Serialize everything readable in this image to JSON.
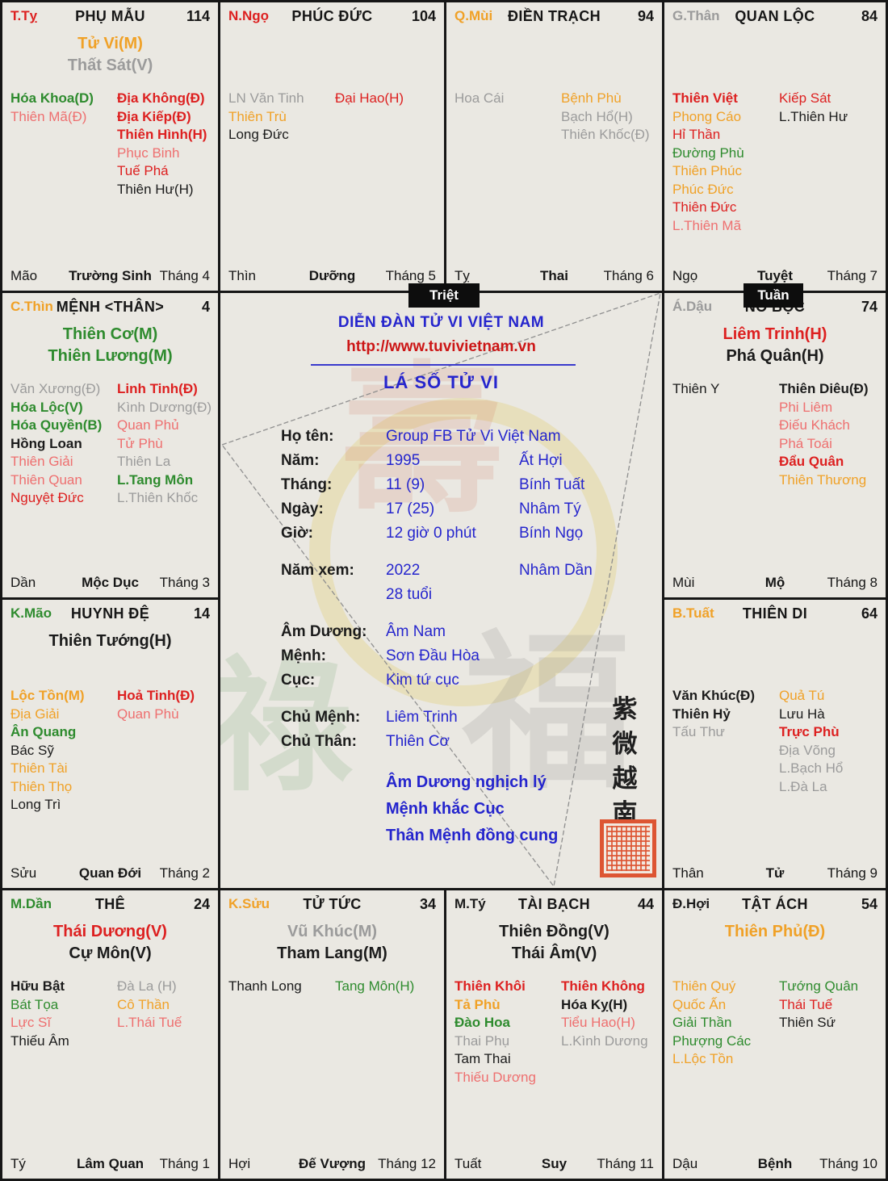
{
  "colors": {
    "red": "#dd2020",
    "pink": "#ee6f6f",
    "orange": "#f0a127",
    "green": "#2e8b2e",
    "gray": "#9b9b9b",
    "black": "#1b1b1b",
    "blue": "#2525cd",
    "url_red": "#cc1616",
    "cell_bg": "#eae8e2",
    "border": "#161616",
    "badge_bg": "#0d0d0d",
    "seal_red": "#dd5533"
  },
  "badges": {
    "triet": "Triệt",
    "tuan": "Tuần"
  },
  "center": {
    "forum_title": "DIỄN ĐÀN TỬ VI VIỆT NAM",
    "url": "http://www.tuvivietnam.vn",
    "chart_title": "LÁ SỐ TỬ VI",
    "fields": [
      {
        "label": "Họ tên:",
        "value": "Group FB Tử Vi Việt Nam",
        "extra": ""
      },
      {
        "label": "Năm:",
        "value": "1995",
        "extra": "Ất Hợi"
      },
      {
        "label": "Tháng:",
        "value": "11 (9)",
        "extra": "Bính Tuất"
      },
      {
        "label": "Ngày:",
        "value": "17 (25)",
        "extra": "Nhâm Tý"
      },
      {
        "label": "Giờ:",
        "value": "12 giờ 0 phút",
        "extra": "Bính Ngọ"
      },
      {
        "label": "Năm xem:",
        "value": "2022",
        "extra": "Nhâm Dần",
        "gap": true
      },
      {
        "label": "",
        "value": "28 tuổi",
        "extra": ""
      },
      {
        "label": "Âm Dương:",
        "value": "Âm Nam",
        "extra": "",
        "gap": true
      },
      {
        "label": "Mệnh:",
        "value": "Sơn Đầu Hòa",
        "extra": ""
      },
      {
        "label": "Cục:",
        "value": "Kim tứ cục",
        "extra": ""
      },
      {
        "label": "Chủ Mệnh:",
        "value": "Liêm Trinh",
        "extra": "",
        "gap": true
      },
      {
        "label": "Chủ Thân:",
        "value": "Thiên Cơ",
        "extra": ""
      }
    ],
    "notes": [
      "Âm Dương nghịch lý",
      "Mệnh khắc Cục",
      "Thân Mệnh đồng cung"
    ],
    "vertical_text": "紫微越南"
  },
  "palaces": [
    {
      "key": "phu-mau",
      "col": 0,
      "row": 0,
      "branch": "T.Tỵ",
      "branch_color": "red",
      "title": "PHỤ MẪU",
      "num": "114",
      "main": [
        {
          "t": "Tử Vi(M)",
          "c": "orange"
        },
        {
          "t": "Thất Sát(V)",
          "c": "gray"
        }
      ],
      "left": [
        {
          "t": "Hóa Khoa(D)",
          "c": "green",
          "b": 1
        },
        {
          "t": "Thiên Mã(Đ)",
          "c": "pink"
        }
      ],
      "right": [
        {
          "t": "Địa Không(Đ)",
          "c": "red",
          "b": 1
        },
        {
          "t": "Địa Kiếp(Đ)",
          "c": "red",
          "b": 1
        },
        {
          "t": "Thiên Hình(H)",
          "c": "red",
          "b": 1
        },
        {
          "t": "Phục Binh",
          "c": "pink"
        },
        {
          "t": "Tuế Phá",
          "c": "red"
        },
        {
          "t": "Thiên Hư(H)",
          "c": "black"
        }
      ],
      "footer": {
        "branch": "Mão",
        "stage": "Trường Sinh",
        "month": "Tháng 4"
      }
    },
    {
      "key": "phuc-duc",
      "col": 1,
      "row": 0,
      "branch": "N.Ngọ",
      "branch_color": "red",
      "title": "PHÚC ĐỨC",
      "num": "104",
      "main": [],
      "left": [
        {
          "t": "LN Văn Tinh",
          "c": "gray"
        },
        {
          "t": "Thiên Trù",
          "c": "orange"
        },
        {
          "t": "Long Đức",
          "c": "black"
        }
      ],
      "right": [
        {
          "t": "Đại Hao(H)",
          "c": "red"
        }
      ],
      "footer": {
        "branch": "Thìn",
        "stage": "Dưỡng",
        "month": "Tháng 5"
      }
    },
    {
      "key": "dien-trach",
      "col": 2,
      "row": 0,
      "branch": "Q.Mùi",
      "branch_color": "orange",
      "title": "ĐIỀN TRẠCH",
      "num": "94",
      "main": [],
      "left": [
        {
          "t": "Hoa Cái",
          "c": "gray"
        }
      ],
      "right": [
        {
          "t": "Bệnh Phù",
          "c": "orange"
        },
        {
          "t": "Bạch Hổ(H)",
          "c": "gray"
        },
        {
          "t": "Thiên Khốc(Đ)",
          "c": "gray"
        }
      ],
      "footer": {
        "branch": "Tỵ",
        "stage": "Thai",
        "month": "Tháng 6"
      }
    },
    {
      "key": "quan-loc",
      "col": 3,
      "row": 0,
      "branch": "G.Thân",
      "branch_color": "gray",
      "title": "QUAN LỘC",
      "num": "84",
      "main": [],
      "left": [
        {
          "t": "Thiên Việt",
          "c": "red",
          "b": 1
        },
        {
          "t": "Phong Cáo",
          "c": "orange"
        },
        {
          "t": "Hỉ Thần",
          "c": "red"
        },
        {
          "t": "Đường Phù",
          "c": "green"
        },
        {
          "t": "Thiên Phúc",
          "c": "orange"
        },
        {
          "t": "Phúc Đức",
          "c": "orange"
        },
        {
          "t": "Thiên Đức",
          "c": "red"
        },
        {
          "t": "L.Thiên Mã",
          "c": "pink"
        }
      ],
      "right": [
        {
          "t": "Kiếp Sát",
          "c": "red"
        },
        {
          "t": "L.Thiên Hư",
          "c": "black"
        }
      ],
      "footer": {
        "branch": "Ngọ",
        "stage": "Tuyệt",
        "month": "Tháng 7"
      }
    },
    {
      "key": "menh",
      "col": 0,
      "row": 1,
      "branch": "C.Thìn",
      "branch_color": "orange",
      "title": "MỆNH <THÂN>",
      "num": "4",
      "main": [
        {
          "t": "Thiên Cơ(M)",
          "c": "green"
        },
        {
          "t": "Thiên Lương(M)",
          "c": "green"
        }
      ],
      "left": [
        {
          "t": "Văn Xương(Đ)",
          "c": "gray"
        },
        {
          "t": "Hóa Lộc(V)",
          "c": "green",
          "b": 1
        },
        {
          "t": "Hóa Quyền(B)",
          "c": "green",
          "b": 1
        },
        {
          "t": "Hồng Loan",
          "c": "black",
          "b": 1
        },
        {
          "t": "Thiên Giải",
          "c": "pink"
        },
        {
          "t": "Thiên Quan",
          "c": "pink"
        },
        {
          "t": "Nguyệt Đức",
          "c": "red"
        }
      ],
      "right": [
        {
          "t": "Linh Tinh(Đ)",
          "c": "red",
          "b": 1
        },
        {
          "t": "Kình Dương(Đ)",
          "c": "gray"
        },
        {
          "t": "Quan Phủ",
          "c": "pink"
        },
        {
          "t": "Tử Phù",
          "c": "pink"
        },
        {
          "t": "Thiên La",
          "c": "gray"
        },
        {
          "t": "L.Tang Môn",
          "c": "green",
          "b": 1
        },
        {
          "t": "L.Thiên Khốc",
          "c": "gray"
        }
      ],
      "footer": {
        "branch": "Dần",
        "stage": "Mộc Dục",
        "month": "Tháng 3"
      }
    },
    {
      "key": "no-boc",
      "col": 3,
      "row": 1,
      "branch": "Á.Dậu",
      "branch_color": "gray",
      "title": "NÔ BỘC",
      "num": "74",
      "main": [
        {
          "t": "Liêm Trinh(H)",
          "c": "red"
        },
        {
          "t": "Phá Quân(H)",
          "c": "black"
        }
      ],
      "left": [
        {
          "t": "Thiên Y",
          "c": "black"
        }
      ],
      "right": [
        {
          "t": "Thiên Diêu(Đ)",
          "c": "black",
          "b": 1
        },
        {
          "t": "Phi Liêm",
          "c": "pink"
        },
        {
          "t": "Điếu Khách",
          "c": "pink"
        },
        {
          "t": "Phá Toái",
          "c": "pink"
        },
        {
          "t": "Đẩu Quân",
          "c": "red",
          "b": 1
        },
        {
          "t": "Thiên Thương",
          "c": "orange"
        }
      ],
      "footer": {
        "branch": "Mùi",
        "stage": "Mộ",
        "month": "Tháng 8"
      }
    },
    {
      "key": "huynh-de",
      "col": 0,
      "row": 2,
      "branch": "K.Mão",
      "branch_color": "green",
      "title": "HUYNH ĐỆ",
      "num": "14",
      "main": [
        {
          "t": "Thiên Tướng(H)",
          "c": "black"
        }
      ],
      "left": [
        {
          "t": "Lộc Tồn(M)",
          "c": "orange",
          "b": 1
        },
        {
          "t": "Địa Giải",
          "c": "orange"
        },
        {
          "t": "Ân Quang",
          "c": "green",
          "b": 1
        },
        {
          "t": "Bác Sỹ",
          "c": "black"
        },
        {
          "t": "Thiên Tài",
          "c": "orange"
        },
        {
          "t": "Thiên Thọ",
          "c": "orange"
        },
        {
          "t": "Long Trì",
          "c": "black"
        }
      ],
      "right": [
        {
          "t": "Hoả Tinh(Đ)",
          "c": "red",
          "b": 1
        },
        {
          "t": "Quan Phù",
          "c": "pink"
        }
      ],
      "footer": {
        "branch": "Sửu",
        "stage": "Quan Đới",
        "month": "Tháng 2"
      }
    },
    {
      "key": "thien-di",
      "col": 3,
      "row": 2,
      "branch": "B.Tuất",
      "branch_color": "orange",
      "title": "THIÊN DI",
      "num": "64",
      "main": [],
      "left": [
        {
          "t": "Văn Khúc(Đ)",
          "c": "black",
          "b": 1
        },
        {
          "t": "Thiên Hỷ",
          "c": "black",
          "b": 1
        },
        {
          "t": "Tấu Thư",
          "c": "gray"
        }
      ],
      "right": [
        {
          "t": "Quả Tú",
          "c": "orange"
        },
        {
          "t": "Lưu Hà",
          "c": "black"
        },
        {
          "t": "Trực Phù",
          "c": "red",
          "b": 1
        },
        {
          "t": "Địa Võng",
          "c": "gray"
        },
        {
          "t": "L.Bạch Hổ",
          "c": "gray"
        },
        {
          "t": "L.Đà La",
          "c": "gray"
        }
      ],
      "footer": {
        "branch": "Thân",
        "stage": "Tử",
        "month": "Tháng 9"
      }
    },
    {
      "key": "the",
      "col": 0,
      "row": 3,
      "branch": "M.Dần",
      "branch_color": "green",
      "title": "THÊ",
      "num": "24",
      "main": [
        {
          "t": "Thái Dương(V)",
          "c": "red"
        },
        {
          "t": "Cự Môn(V)",
          "c": "black"
        }
      ],
      "left": [
        {
          "t": "Hữu Bật",
          "c": "black",
          "b": 1
        },
        {
          "t": "Bát Tọa",
          "c": "green"
        },
        {
          "t": "Lực Sĩ",
          "c": "pink"
        },
        {
          "t": "Thiếu Âm",
          "c": "black"
        }
      ],
      "right": [
        {
          "t": "Đà La (H)",
          "c": "gray"
        },
        {
          "t": "Cô Thần",
          "c": "orange"
        },
        {
          "t": "L.Thái Tuế",
          "c": "pink"
        }
      ],
      "footer": {
        "branch": "Tý",
        "stage": "Lâm Quan",
        "month": "Tháng 1"
      }
    },
    {
      "key": "tu-tuc",
      "col": 1,
      "row": 3,
      "branch": "K.Sửu",
      "branch_color": "orange",
      "title": "TỬ TỨC",
      "num": "34",
      "main": [
        {
          "t": "Vũ Khúc(M)",
          "c": "gray"
        },
        {
          "t": "Tham Lang(M)",
          "c": "black"
        }
      ],
      "left": [
        {
          "t": "Thanh Long",
          "c": "black"
        }
      ],
      "right": [
        {
          "t": "Tang Môn(H)",
          "c": "green"
        }
      ],
      "footer": {
        "branch": "Hợi",
        "stage": "Đế Vượng",
        "month": "Tháng 12"
      }
    },
    {
      "key": "tai-bach",
      "col": 2,
      "row": 3,
      "branch": "M.Tý",
      "branch_color": "black",
      "title": "TÀI BẠCH",
      "num": "44",
      "main": [
        {
          "t": "Thiên Đồng(V)",
          "c": "black"
        },
        {
          "t": "Thái Âm(V)",
          "c": "black"
        }
      ],
      "left": [
        {
          "t": "Thiên Khôi",
          "c": "red",
          "b": 1
        },
        {
          "t": "Tả Phù",
          "c": "orange",
          "b": 1
        },
        {
          "t": "Đào Hoa",
          "c": "green",
          "b": 1
        },
        {
          "t": "Thai Phụ",
          "c": "gray"
        },
        {
          "t": "Tam Thai",
          "c": "black"
        },
        {
          "t": "Thiếu Dương",
          "c": "pink"
        }
      ],
      "right": [
        {
          "t": "Thiên Không",
          "c": "red",
          "b": 1
        },
        {
          "t": "Hóa Kỵ(H)",
          "c": "black",
          "b": 1
        },
        {
          "t": "Tiểu Hao(H)",
          "c": "pink"
        },
        {
          "t": "L.Kình Dương",
          "c": "gray"
        }
      ],
      "footer": {
        "branch": "Tuất",
        "stage": "Suy",
        "month": "Tháng 11"
      }
    },
    {
      "key": "tat-ach",
      "col": 3,
      "row": 3,
      "branch": "Đ.Hợi",
      "branch_color": "black",
      "title": "TẬT ÁCH",
      "num": "54",
      "main": [
        {
          "t": "Thiên Phủ(Đ)",
          "c": "orange"
        }
      ],
      "left": [
        {
          "t": "Thiên Quý",
          "c": "orange"
        },
        {
          "t": "Quốc Ấn",
          "c": "orange"
        },
        {
          "t": "Giải Thần",
          "c": "green"
        },
        {
          "t": "Phượng Các",
          "c": "green"
        },
        {
          "t": "L.Lộc Tồn",
          "c": "orange"
        }
      ],
      "right": [
        {
          "t": "Tướng Quân",
          "c": "green"
        },
        {
          "t": "Thái Tuế",
          "c": "red"
        },
        {
          "t": "Thiên Sứ",
          "c": "black"
        }
      ],
      "footer": {
        "branch": "Dậu",
        "stage": "Bệnh",
        "month": "Tháng 10"
      }
    }
  ]
}
